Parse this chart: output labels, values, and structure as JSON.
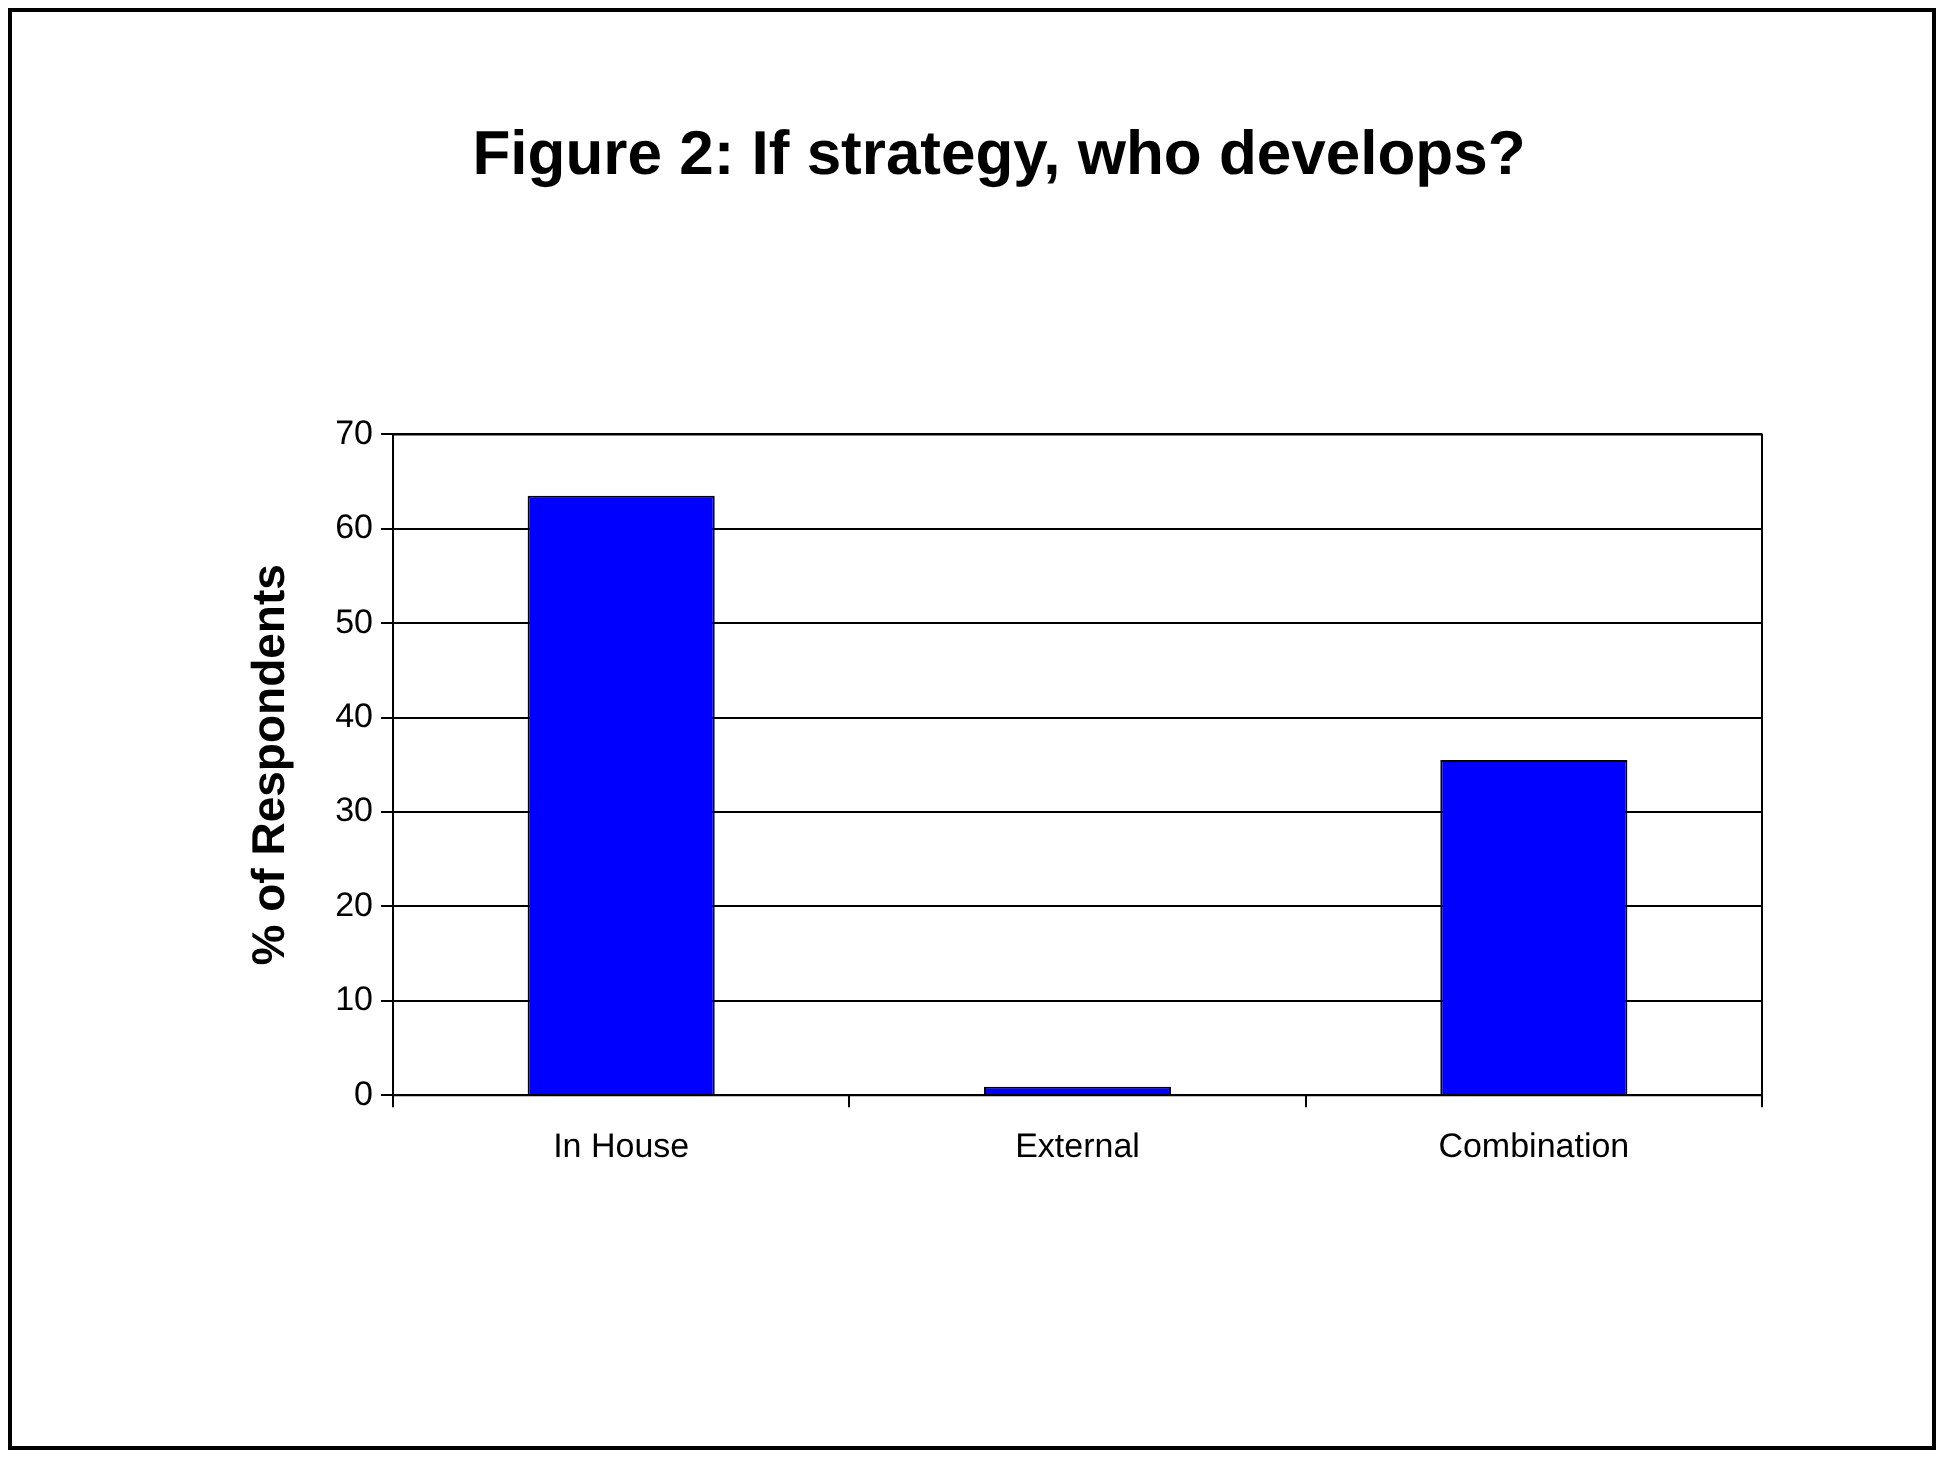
{
  "chart_data": {
    "type": "bar",
    "title": "Figure 2: If strategy, who develops?",
    "ylabel": "% of Respondents",
    "categories": [
      "In House",
      "External",
      "Combination"
    ],
    "values": [
      63.5,
      0.9,
      35.5
    ],
    "color": "#0000ff",
    "ylim": [
      0,
      70
    ],
    "yticks": [
      0,
      10,
      20,
      30,
      40,
      50,
      60,
      70
    ],
    "grid": "y",
    "legend": false
  }
}
